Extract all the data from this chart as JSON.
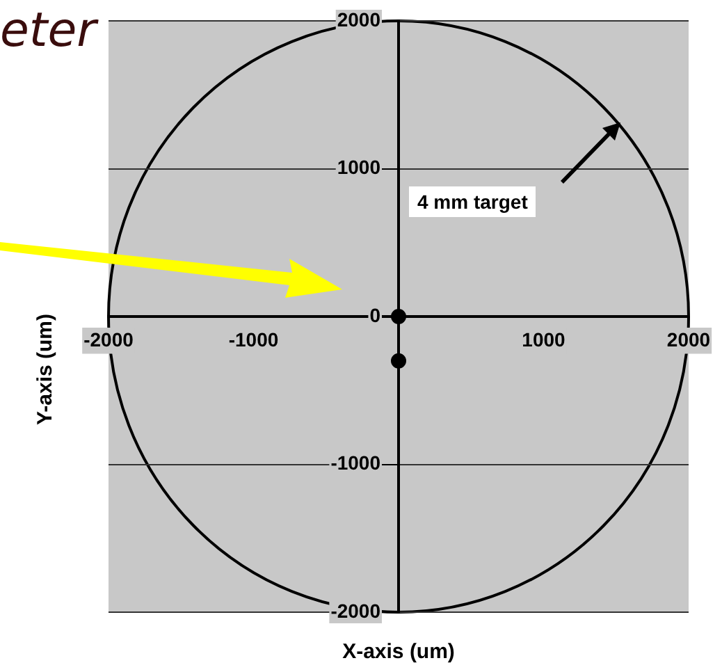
{
  "chart_data": {
    "type": "scatter",
    "xlabel": "X-axis (um)",
    "ylabel": "Y-axis (um)",
    "annotations": [
      "eter",
      "4 mm target"
    ],
    "xlim": [
      -2000,
      2000
    ],
    "ylim": [
      -2000,
      2000
    ],
    "xticks": [
      -2000,
      -1000,
      {
        "value": 0,
        "label": null
      },
      1000,
      2000
    ],
    "yticks": [
      -2000,
      -1000,
      0,
      1000,
      2000
    ],
    "grid": "y",
    "series": [
      {
        "type": "scatter",
        "color": "#000000",
        "marker": "circle",
        "x": [
          0,
          0
        ],
        "values": [
          0,
          -300
        ]
      }
    ]
  }
}
